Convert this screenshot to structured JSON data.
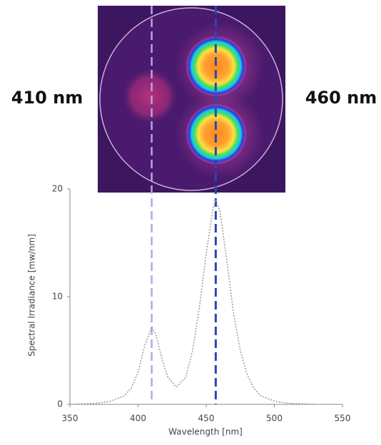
{
  "chart_data": {
    "type": "line",
    "annotations": [
      "410 nm",
      "460 nm"
    ],
    "x": [
      350,
      370,
      380,
      390,
      395,
      400,
      405,
      410,
      413,
      418,
      422,
      428,
      435,
      440,
      445,
      450,
      455,
      457,
      460,
      465,
      470,
      475,
      480,
      485,
      490,
      500,
      510,
      530
    ],
    "values": [
      0,
      0.1,
      0.3,
      0.8,
      1.5,
      3.0,
      5.5,
      7.2,
      6.5,
      4.0,
      2.5,
      1.6,
      2.5,
      5.0,
      9.0,
      14.0,
      18.2,
      19.0,
      18.0,
      13.5,
      8.5,
      5.0,
      2.8,
      1.5,
      0.8,
      0.3,
      0.1,
      0
    ],
    "color": "#9a9a9a",
    "vlines": [
      {
        "x": 410,
        "color": "#b9a3ec"
      },
      {
        "x": 457,
        "color": "#2b46b0"
      }
    ],
    "xlabel": "Wavelength [nm]",
    "ylabel": "Spectral Irradiance [mw/nm]",
    "xlim": [
      350,
      550
    ],
    "xticks": [
      350,
      400,
      450,
      500,
      550
    ],
    "ylim": [
      0,
      20
    ],
    "yticks": [
      0,
      10,
      20
    ]
  }
}
